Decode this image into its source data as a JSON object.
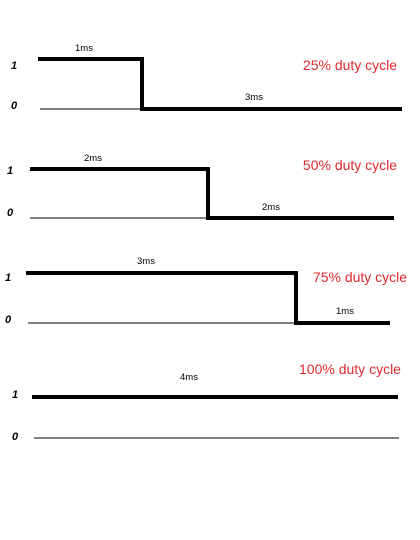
{
  "signal_color": "#000000",
  "caption_color": "#e0282e",
  "level_labels": {
    "high": "1",
    "low": "0"
  },
  "period_ms": 4,
  "waveforms": [
    {
      "caption": "25% duty cycle",
      "duty_percent": 25,
      "high_label": "1ms",
      "low_label": "3ms"
    },
    {
      "caption": "50% duty cycle",
      "duty_percent": 50,
      "high_label": "2ms",
      "low_label": "2ms"
    },
    {
      "caption": "75% duty cycle",
      "duty_percent": 75,
      "high_label": "3ms",
      "low_label": "1ms"
    },
    {
      "caption": "100% duty cycle",
      "duty_percent": 100,
      "high_label": "4ms",
      "low_label": ""
    }
  ]
}
